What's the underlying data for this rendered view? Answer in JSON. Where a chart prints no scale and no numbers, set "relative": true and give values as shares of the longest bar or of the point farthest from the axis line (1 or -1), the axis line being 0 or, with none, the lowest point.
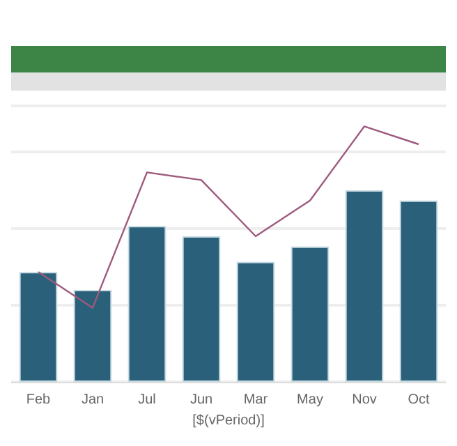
{
  "chart_data": {
    "type": "bar",
    "relative": true,
    "categories": [
      "Feb",
      "Jan",
      "Jul",
      "Jun",
      "Mar",
      "May",
      "Nov",
      "Oct"
    ],
    "xlabel": "[$(vPeriod)]",
    "series": [
      {
        "color": "#2a6079",
        "values": [
          0.43,
          0.36,
          0.61,
          0.57,
          0.47,
          0.53,
          0.75,
          0.71
        ]
      },
      {
        "type": "line",
        "color": "#9e5a7e",
        "values": [
          0.43,
          0.29,
          0.82,
          0.79,
          0.57,
          0.71,
          1,
          0.93
        ]
      }
    ],
    "grid": "y",
    "marker": "none"
  }
}
